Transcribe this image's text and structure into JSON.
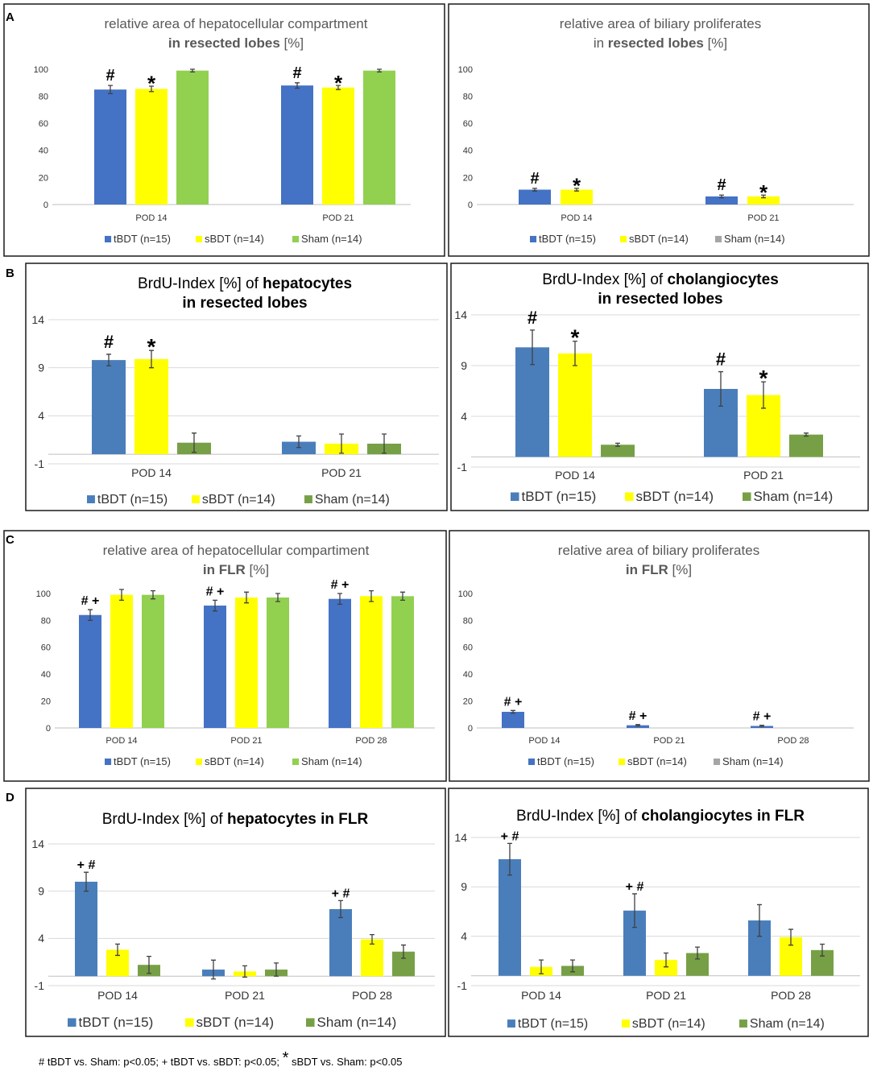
{
  "panel_labels": [
    "A",
    "B",
    "C",
    "D"
  ],
  "footnote": {
    "part1": "# tBDT vs. Sham: p<0.05; + tBDT vs. sBDT: p<0.05; ",
    "star": "*",
    "part2": " sBDT vs. Sham: p<0.05"
  },
  "colors": {
    "tBDT_style1": "#4472c4",
    "sBDT_style1": "#ffff00",
    "Sham_style1": "#92d050",
    "Sham_legend_gray": "#a5a5a5",
    "tBDT_style2": "#4a7ebb",
    "sBDT_style2": "#ffff00",
    "Sham_style2": "#77a046"
  },
  "chart_data": [
    {
      "id": "A-left",
      "type": "bar",
      "title_lines": [
        [
          {
            "t": "relative area of hepatocellular compartment",
            "b": false
          }
        ],
        [
          {
            "t": "in resected lobes",
            "b": true
          },
          {
            "t": " [%]",
            "b": false
          }
        ]
      ],
      "categories": [
        "POD 14",
        "POD 21"
      ],
      "ylim": [
        0,
        100
      ],
      "yticks": [
        0,
        20,
        40,
        60,
        80,
        100
      ],
      "grid": false,
      "series": [
        {
          "name": "tBDT (n=15)",
          "values": [
            85,
            88
          ],
          "err": [
            3,
            2
          ],
          "ann": [
            "#",
            "#"
          ]
        },
        {
          "name": "sBDT (n=14)",
          "values": [
            85.5,
            86.5
          ],
          "err": [
            2,
            1.5
          ],
          "ann": [
            "*",
            "*"
          ]
        },
        {
          "name": "Sham (n=14)",
          "values": [
            99,
            99
          ],
          "err": [
            1,
            1
          ],
          "ann": [
            "",
            ""
          ]
        }
      ]
    },
    {
      "id": "A-right",
      "type": "bar",
      "title_lines": [
        [
          {
            "t": "relative area of biliary proliferates",
            "b": false
          }
        ],
        [
          {
            "t": "in ",
            "b": false
          },
          {
            "t": "resected lobes",
            "b": true
          },
          {
            "t": "  [%]",
            "b": false
          }
        ]
      ],
      "categories": [
        "POD 14",
        "POD 21"
      ],
      "ylim": [
        0,
        100
      ],
      "yticks": [
        0,
        20,
        40,
        60,
        80,
        100
      ],
      "grid": false,
      "series": [
        {
          "name": "tBDT (n=15)",
          "values": [
            11,
            6
          ],
          "err": [
            1,
            1
          ],
          "ann": [
            "#",
            "#"
          ]
        },
        {
          "name": "sBDT (n=14)",
          "values": [
            11,
            6
          ],
          "err": [
            1,
            1
          ],
          "ann": [
            "*",
            "*"
          ]
        },
        {
          "name": "Sham (n=14)",
          "values": [
            0,
            0
          ],
          "err": [
            0,
            0
          ],
          "ann": [
            "",
            ""
          ]
        }
      ]
    },
    {
      "id": "B-left",
      "type": "bar",
      "title_lines": [
        [
          {
            "t": "BrdU-Index [%] of ",
            "b": false
          },
          {
            "t": "hepatocytes",
            "b": true
          }
        ],
        [
          {
            "t": "in resected lobes",
            "b": true
          }
        ]
      ],
      "categories": [
        "POD 14",
        "POD 21"
      ],
      "ylim": [
        -1,
        14
      ],
      "yticks": [
        -1,
        4,
        9,
        14
      ],
      "grid": true,
      "series": [
        {
          "name": "tBDT (n=15)",
          "values": [
            9.8,
            1.3
          ],
          "err": [
            0.6,
            0.6
          ],
          "ann": [
            "#",
            ""
          ]
        },
        {
          "name": "sBDT (n=14)",
          "values": [
            9.9,
            1.1
          ],
          "err": [
            0.9,
            1.0
          ],
          "ann": [
            "*",
            ""
          ]
        },
        {
          "name": "Sham (n=14)",
          "values": [
            1.2,
            1.1
          ],
          "err": [
            1.0,
            1.0
          ],
          "ann": [
            "",
            ""
          ]
        }
      ]
    },
    {
      "id": "B-right",
      "type": "bar",
      "title_lines": [
        [
          {
            "t": "BrdU-Index [%] of ",
            "b": false
          },
          {
            "t": "cholangiocytes",
            "b": true
          }
        ],
        [
          {
            "t": "in resected lobes",
            "b": true
          }
        ]
      ],
      "categories": [
        "POD 14",
        "POD 21"
      ],
      "ylim": [
        -1,
        14
      ],
      "yticks": [
        -1,
        4,
        9,
        14
      ],
      "grid": true,
      "series": [
        {
          "name": "tBDT (n=15)",
          "values": [
            10.8,
            6.7
          ],
          "err": [
            1.7,
            1.7
          ],
          "ann": [
            "#",
            "#"
          ]
        },
        {
          "name": "sBDT (n=14)",
          "values": [
            10.2,
            6.1
          ],
          "err": [
            1.2,
            1.3
          ],
          "ann": [
            "*",
            "*"
          ]
        },
        {
          "name": "Sham (n=14)",
          "values": [
            1.2,
            2.2
          ],
          "err": [
            0.15,
            0.15
          ],
          "ann": [
            "",
            ""
          ]
        }
      ]
    },
    {
      "id": "C-left",
      "type": "bar",
      "title_lines": [
        [
          {
            "t": "relative area of hepatocellular compartiment",
            "b": false
          }
        ],
        [
          {
            "t": "in FLR",
            "b": true
          },
          {
            "t": " [%]",
            "b": false
          }
        ]
      ],
      "categories": [
        "POD 14",
        "POD 21",
        "POD 28"
      ],
      "ylim": [
        0,
        100
      ],
      "yticks": [
        0,
        20,
        40,
        60,
        80,
        100
      ],
      "grid": false,
      "series": [
        {
          "name": "tBDT (n=15)",
          "values": [
            84,
            91,
            96
          ],
          "err": [
            4,
            4,
            4
          ],
          "ann": [
            "# +",
            "# +",
            "# +"
          ]
        },
        {
          "name": "sBDT (n=14)",
          "values": [
            99,
            97,
            98
          ],
          "err": [
            4,
            4,
            4
          ],
          "ann": [
            "",
            "",
            ""
          ]
        },
        {
          "name": "Sham (n=14)",
          "values": [
            99,
            97,
            98
          ],
          "err": [
            3,
            3,
            3
          ],
          "ann": [
            "",
            "",
            ""
          ]
        }
      ]
    },
    {
      "id": "C-right",
      "type": "bar",
      "title_lines": [
        [
          {
            "t": "relative area of biliary proliferates",
            "b": false
          }
        ],
        [
          {
            "t": "in FLR",
            "b": true
          },
          {
            "t": " [%]",
            "b": false
          }
        ]
      ],
      "categories": [
        "POD 14",
        "POD 21",
        "POD 28"
      ],
      "ylim": [
        0,
        100
      ],
      "yticks": [
        0,
        20,
        40,
        60,
        80,
        100
      ],
      "grid": false,
      "series": [
        {
          "name": "tBDT (n=15)",
          "values": [
            12,
            2,
            1.5
          ],
          "err": [
            1,
            0.5,
            0.5
          ],
          "ann": [
            "# +",
            "# +",
            "# +"
          ]
        },
        {
          "name": "sBDT (n=14)",
          "values": [
            0,
            0,
            0
          ],
          "err": [
            0,
            0,
            0
          ],
          "ann": [
            "",
            "",
            ""
          ]
        },
        {
          "name": "Sham (n=14)",
          "values": [
            0,
            0,
            0
          ],
          "err": [
            0,
            0,
            0
          ],
          "ann": [
            "",
            "",
            ""
          ]
        }
      ]
    },
    {
      "id": "D-left",
      "type": "bar",
      "title_lines": [
        [
          {
            "t": "BrdU-Index [%] of ",
            "b": false
          },
          {
            "t": "hepatocytes  in FLR",
            "b": true
          }
        ]
      ],
      "categories": [
        "POD 14",
        "POD 21",
        "POD 28"
      ],
      "ylim": [
        -1,
        14
      ],
      "yticks": [
        -1,
        4,
        9,
        14
      ],
      "grid": true,
      "series": [
        {
          "name": "tBDT (n=15)",
          "values": [
            10.0,
            0.7,
            7.1
          ],
          "err": [
            1.0,
            1.0,
            0.9
          ],
          "ann": [
            "+ #",
            "",
            "+ #"
          ]
        },
        {
          "name": "sBDT (n=14)",
          "values": [
            2.8,
            0.5,
            3.9
          ],
          "err": [
            0.6,
            0.6,
            0.5
          ],
          "ann": [
            "",
            "",
            ""
          ]
        },
        {
          "name": "Sham (n=14)",
          "values": [
            1.2,
            0.7,
            2.6
          ],
          "err": [
            0.9,
            0.7,
            0.7
          ],
          "ann": [
            "",
            "",
            ""
          ]
        }
      ]
    },
    {
      "id": "D-right",
      "type": "bar",
      "title_lines": [
        [
          {
            "t": "BrdU-Index [%] of ",
            "b": false
          },
          {
            "t": "cholangiocytes  in FLR",
            "b": true
          }
        ]
      ],
      "categories": [
        "POD 14",
        "POD 21",
        "POD 28"
      ],
      "ylim": [
        -1,
        14
      ],
      "yticks": [
        -1,
        4,
        9,
        14
      ],
      "grid": true,
      "series": [
        {
          "name": "tBDT (n=15)",
          "values": [
            11.8,
            6.6,
            5.6
          ],
          "err": [
            1.6,
            1.7,
            1.6
          ],
          "ann": [
            "+ #",
            "+ #",
            ""
          ]
        },
        {
          "name": "sBDT (n=14)",
          "values": [
            0.9,
            1.6,
            3.9
          ],
          "err": [
            0.7,
            0.7,
            0.8
          ],
          "ann": [
            "",
            "",
            ""
          ]
        },
        {
          "name": "Sham (n=14)",
          "values": [
            1.0,
            2.3,
            2.6
          ],
          "err": [
            0.6,
            0.6,
            0.6
          ],
          "ann": [
            "",
            "",
            ""
          ]
        }
      ]
    }
  ]
}
